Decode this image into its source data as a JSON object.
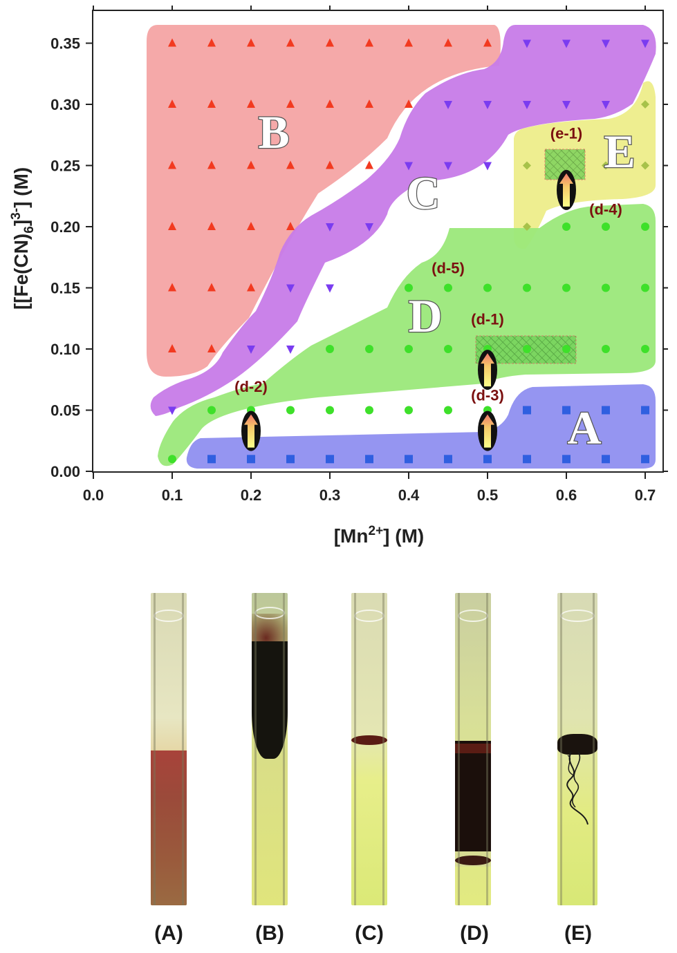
{
  "chart_data": {
    "type": "scatter",
    "xlabel_main": "[Mn",
    "xlabel_sup": "2+",
    "xlabel_end": "] (M)",
    "ylabel_main": "[[Fe(CN)",
    "ylabel_sub": "6",
    "ylabel_mid": "]",
    "ylabel_sup": "3-",
    "ylabel_end": "] (M)",
    "xlim": [
      0.0,
      0.72
    ],
    "ylim": [
      0.0,
      0.37
    ],
    "xticks": [
      "0.0",
      "0.1",
      "0.2",
      "0.3",
      "0.4",
      "0.5",
      "0.6",
      "0.7"
    ],
    "yticks": [
      "0.00",
      "0.05",
      "0.10",
      "0.15",
      "0.20",
      "0.25",
      "0.30",
      "0.35"
    ],
    "regions": [
      {
        "name": "A",
        "color": "#8f8ff0"
      },
      {
        "name": "B",
        "color": "#f4a4a4"
      },
      {
        "name": "C",
        "color": "#c77be8"
      },
      {
        "name": "D",
        "color": "#9be87a"
      },
      {
        "name": "E",
        "color": "#eded8a"
      }
    ],
    "series": [
      {
        "name": "A",
        "marker": "square",
        "color": "#2f5fe0",
        "points": [
          [
            0.15,
            0.01
          ],
          [
            0.2,
            0.01
          ],
          [
            0.25,
            0.01
          ],
          [
            0.3,
            0.01
          ],
          [
            0.35,
            0.01
          ],
          [
            0.4,
            0.01
          ],
          [
            0.45,
            0.01
          ],
          [
            0.5,
            0.01
          ],
          [
            0.55,
            0.01
          ],
          [
            0.6,
            0.01
          ],
          [
            0.65,
            0.01
          ],
          [
            0.7,
            0.01
          ],
          [
            0.55,
            0.05
          ],
          [
            0.6,
            0.05
          ],
          [
            0.65,
            0.05
          ],
          [
            0.7,
            0.05
          ]
        ]
      },
      {
        "name": "B",
        "marker": "triangle-up",
        "color": "#f23a20",
        "points": [
          [
            0.1,
            0.1
          ],
          [
            0.15,
            0.1
          ],
          [
            0.1,
            0.15
          ],
          [
            0.15,
            0.15
          ],
          [
            0.2,
            0.15
          ],
          [
            0.1,
            0.2
          ],
          [
            0.15,
            0.2
          ],
          [
            0.2,
            0.2
          ],
          [
            0.25,
            0.2
          ],
          [
            0.1,
            0.25
          ],
          [
            0.15,
            0.25
          ],
          [
            0.2,
            0.25
          ],
          [
            0.25,
            0.25
          ],
          [
            0.3,
            0.25
          ],
          [
            0.35,
            0.25
          ],
          [
            0.1,
            0.3
          ],
          [
            0.15,
            0.3
          ],
          [
            0.2,
            0.3
          ],
          [
            0.25,
            0.3
          ],
          [
            0.3,
            0.3
          ],
          [
            0.35,
            0.3
          ],
          [
            0.4,
            0.3
          ],
          [
            0.1,
            0.35
          ],
          [
            0.15,
            0.35
          ],
          [
            0.2,
            0.35
          ],
          [
            0.25,
            0.35
          ],
          [
            0.3,
            0.35
          ],
          [
            0.35,
            0.35
          ],
          [
            0.4,
            0.35
          ],
          [
            0.45,
            0.35
          ],
          [
            0.5,
            0.35
          ]
        ]
      },
      {
        "name": "C",
        "marker": "triangle-down",
        "color": "#7a3cf0",
        "points": [
          [
            0.1,
            0.05
          ],
          [
            0.2,
            0.1
          ],
          [
            0.25,
            0.1
          ],
          [
            0.25,
            0.15
          ],
          [
            0.3,
            0.15
          ],
          [
            0.35,
            0.2
          ],
          [
            0.3,
            0.2
          ],
          [
            0.4,
            0.25
          ],
          [
            0.45,
            0.25
          ],
          [
            0.5,
            0.25
          ],
          [
            0.45,
            0.3
          ],
          [
            0.5,
            0.3
          ],
          [
            0.55,
            0.3
          ],
          [
            0.6,
            0.3
          ],
          [
            0.65,
            0.3
          ],
          [
            0.55,
            0.35
          ],
          [
            0.6,
            0.35
          ],
          [
            0.65,
            0.35
          ],
          [
            0.7,
            0.35
          ]
        ]
      },
      {
        "name": "D",
        "marker": "circle",
        "color": "#3ee02a",
        "points": [
          [
            0.1,
            0.01
          ],
          [
            0.15,
            0.05
          ],
          [
            0.2,
            0.05
          ],
          [
            0.25,
            0.05
          ],
          [
            0.3,
            0.05
          ],
          [
            0.35,
            0.05
          ],
          [
            0.4,
            0.05
          ],
          [
            0.45,
            0.05
          ],
          [
            0.5,
            0.05
          ],
          [
            0.3,
            0.1
          ],
          [
            0.35,
            0.1
          ],
          [
            0.4,
            0.1
          ],
          [
            0.45,
            0.1
          ],
          [
            0.5,
            0.1
          ],
          [
            0.55,
            0.1
          ],
          [
            0.6,
            0.1
          ],
          [
            0.65,
            0.1
          ],
          [
            0.7,
            0.1
          ],
          [
            0.4,
            0.15
          ],
          [
            0.45,
            0.15
          ],
          [
            0.5,
            0.15
          ],
          [
            0.55,
            0.15
          ],
          [
            0.6,
            0.15
          ],
          [
            0.65,
            0.15
          ],
          [
            0.7,
            0.15
          ],
          [
            0.6,
            0.2
          ],
          [
            0.65,
            0.2
          ],
          [
            0.7,
            0.2
          ]
        ]
      },
      {
        "name": "E",
        "marker": "diamond",
        "color": "#a7c24a",
        "points": [
          [
            0.55,
            0.2
          ],
          [
            0.55,
            0.25
          ],
          [
            0.65,
            0.25
          ],
          [
            0.7,
            0.25
          ],
          [
            0.7,
            0.3
          ]
        ]
      }
    ],
    "annotations": [
      {
        "text": "(d-1)",
        "x": 0.5,
        "y": 0.12
      },
      {
        "text": "(d-2)",
        "x": 0.2,
        "y": 0.065
      },
      {
        "text": "(d-3)",
        "x": 0.5,
        "y": 0.058
      },
      {
        "text": "(d-4)",
        "x": 0.65,
        "y": 0.21
      },
      {
        "text": "(d-5)",
        "x": 0.45,
        "y": 0.162
      },
      {
        "text": "(e-1)",
        "x": 0.6,
        "y": 0.272
      }
    ],
    "arrows": [
      [
        0.2,
        0.033
      ],
      [
        0.5,
        0.033
      ],
      [
        0.5,
        0.083
      ],
      [
        0.6,
        0.23
      ]
    ]
  },
  "tubes": {
    "labels": [
      "(A)",
      "(B)",
      "(C)",
      "(D)",
      "(E)"
    ]
  }
}
